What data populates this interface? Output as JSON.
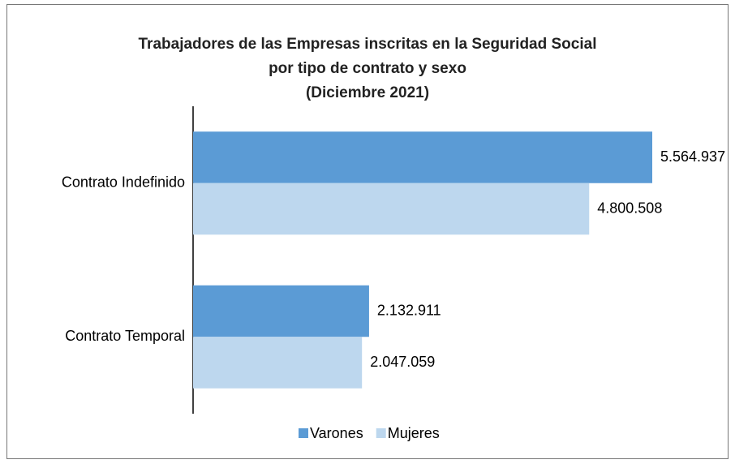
{
  "chart_data": {
    "type": "bar",
    "orientation": "horizontal",
    "title": [
      "Trabajadores de las Empresas inscritas en la Seguridad Social",
      "por tipo de contrato y sexo",
      "(Diciembre 2021)"
    ],
    "categories": [
      "Contrato Indefinido",
      "Contrato Temporal"
    ],
    "series": [
      {
        "name": "Varones",
        "color": "#5b9bd5",
        "values": [
          5564937,
          2132911
        ],
        "value_labels": [
          "5.564.937",
          "2.132.911"
        ]
      },
      {
        "name": "Mujeres",
        "color": "#bdd7ee",
        "values": [
          4800508,
          2047059
        ],
        "value_labels": [
          "4.800.508",
          "2.047.059"
        ]
      }
    ],
    "legend": "bottom"
  }
}
